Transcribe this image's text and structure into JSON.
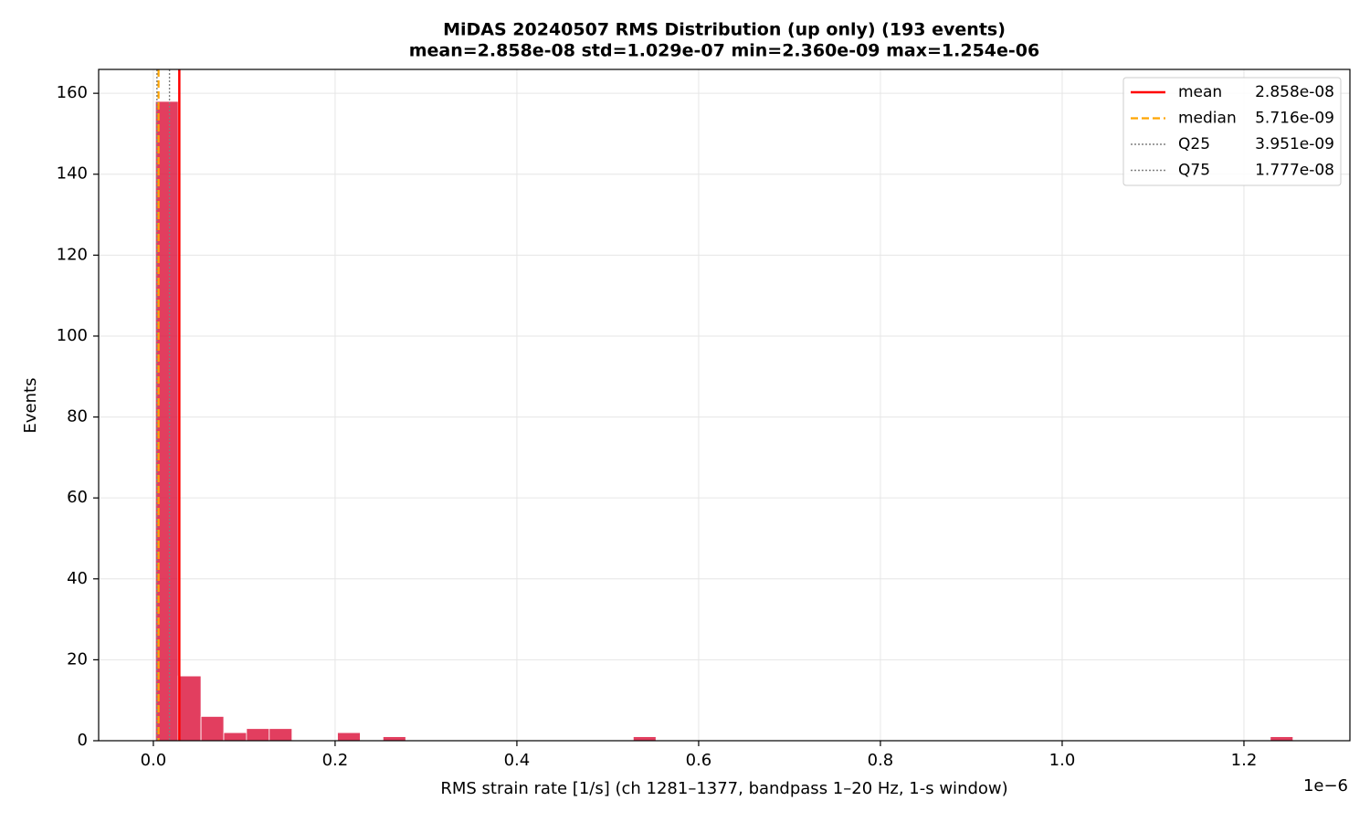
{
  "chart_data": {
    "type": "histogram",
    "title": "MiDAS 20240507  RMS Distribution  (up only)  (193 events)",
    "subtitle": "mean=2.858e-08  std=1.029e-07  min=2.360e-09  max=1.254e-06",
    "x_label": "RMS strain rate [1/s]  (ch 1281–1377, bandpass 1–20 Hz, 1-s window)",
    "y_label": "Events",
    "x_offset_label": "1e−6",
    "color": "#dc143c",
    "bins": [
      0.00236,
      0.027393,
      0.052426,
      0.077458,
      0.102491,
      0.127524,
      0.152557,
      0.17759,
      0.202622,
      0.227655,
      0.252688,
      0.277721,
      0.302754,
      0.327786,
      0.352819,
      0.377852,
      0.402885,
      0.427918,
      0.45295,
      0.477983,
      0.503016,
      0.528049,
      0.553082,
      0.578114,
      0.603147,
      0.62818,
      0.653213,
      0.678246,
      0.703278,
      0.728311,
      0.753344,
      0.778377,
      0.80341,
      0.828442,
      0.853475,
      0.878508,
      0.903541,
      0.928574,
      0.953606,
      0.978639,
      1.003672,
      1.028705,
      1.053738,
      1.07877,
      1.103803,
      1.128836,
      1.153869,
      1.178902,
      1.203934,
      1.228967,
      1.254
    ],
    "counts": [
      158,
      16,
      6,
      2,
      3,
      3,
      0,
      0,
      2,
      0,
      1,
      0,
      0,
      0,
      0,
      0,
      0,
      0,
      0,
      0,
      0,
      1,
      0,
      0,
      0,
      0,
      0,
      0,
      0,
      0,
      0,
      0,
      0,
      0,
      0,
      0,
      0,
      0,
      0,
      0,
      0,
      0,
      0,
      0,
      0,
      0,
      0,
      0,
      0,
      1
    ],
    "vlines": [
      {
        "name": "mean",
        "label": "2.858e-08",
        "value": 0.02858,
        "color": "#ff0000",
        "style": "solid"
      },
      {
        "name": "median",
        "label": "5.716e-09",
        "value": 0.005716,
        "color": "#ffa500",
        "style": "dashed"
      },
      {
        "name": "Q25",
        "label": "3.951e-09",
        "value": 0.003951,
        "color": "#808080",
        "style": "dotted"
      },
      {
        "name": "Q75",
        "label": "1.777e-08",
        "value": 0.01777,
        "color": "#808080",
        "style": "dotted"
      }
    ],
    "xlim": [
      -0.0602,
      1.3166
    ],
    "xticks": [
      {
        "value": 0,
        "label": "0.0"
      },
      0.2,
      0.4,
      0.6,
      0.8,
      {
        "value": 1,
        "label": "1.0"
      },
      1.2
    ],
    "ylim": [
      0,
      165.9
    ],
    "yticks": [
      0,
      20,
      40,
      60,
      80,
      100,
      120,
      140,
      160
    ],
    "grid": true,
    "legend": "upper right"
  }
}
